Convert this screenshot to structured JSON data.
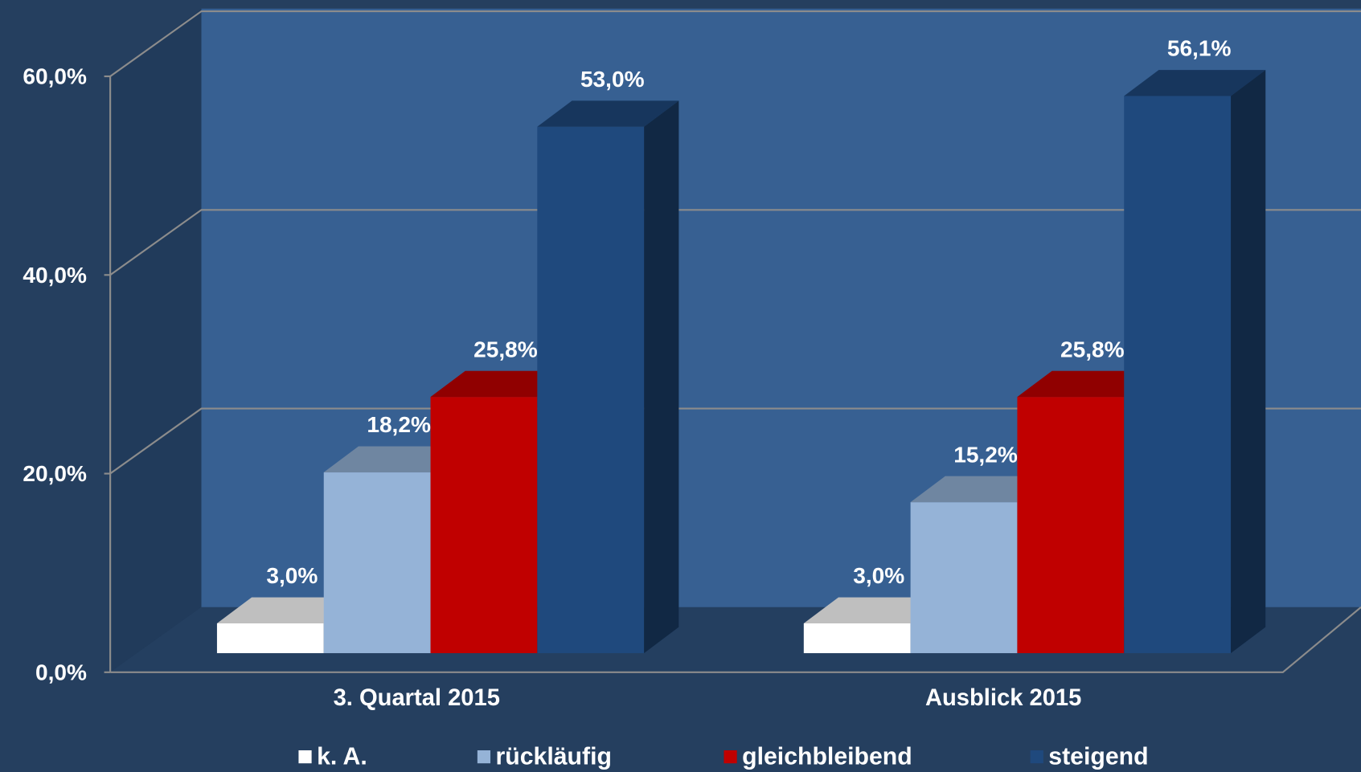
{
  "chart_data": {
    "type": "bar3d",
    "categories": [
      "3. Quartal 2015",
      "Ausblick 2015"
    ],
    "series": [
      {
        "name": "k. A.",
        "color": "#ffffff",
        "values": [
          3.0,
          3.0
        ],
        "value_labels": [
          "3,0%",
          "3,0%"
        ]
      },
      {
        "name": "rückläufig",
        "color": "#95b3d7",
        "values": [
          18.2,
          15.2
        ],
        "value_labels": [
          "18,2%",
          "15,2%"
        ]
      },
      {
        "name": "gleichbleibend",
        "color": "#c00000",
        "values": [
          25.8,
          25.8
        ],
        "value_labels": [
          "25,8%",
          "25,8%"
        ]
      },
      {
        "name": "steigend",
        "color": "#1f497d",
        "values": [
          53.0,
          56.1
        ],
        "value_labels": [
          "53,0%",
          "56,1%"
        ]
      }
    ],
    "ylim": [
      0,
      60
    ],
    "yticks": [
      {
        "value": 0,
        "label": "0,0%"
      },
      {
        "value": 20,
        "label": "20,0%"
      },
      {
        "value": 40,
        "label": "40,0%"
      },
      {
        "value": 60,
        "label": "60,0%"
      }
    ],
    "grid": true,
    "legend": "bottom"
  }
}
